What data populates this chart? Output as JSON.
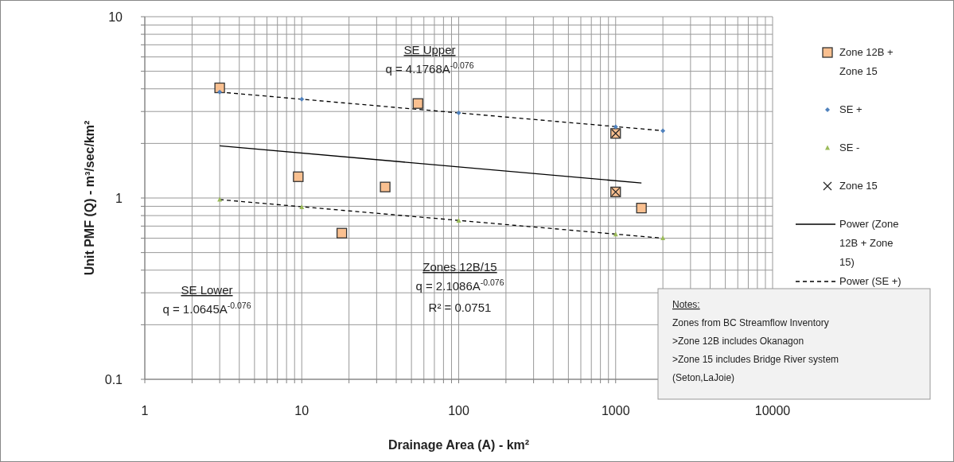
{
  "chart_data": {
    "type": "scatter",
    "xlabel": "Drainage Area (A) - km²",
    "ylabel": "Unit PMF (Q) - m³/sec/km²",
    "log": "xy",
    "grid": true,
    "legend": "right",
    "xlim": [
      1,
      10000
    ],
    "ylim": [
      0.1,
      10
    ],
    "xticks": [
      1,
      {
        "value": 2,
        "label": null
      },
      {
        "value": 3,
        "label": null
      },
      {
        "value": 4,
        "label": null
      },
      {
        "value": 5,
        "label": null
      },
      {
        "value": 6,
        "label": null
      },
      {
        "value": 7,
        "label": null
      },
      {
        "value": 8,
        "label": null
      },
      {
        "value": 9,
        "label": null
      },
      10,
      {
        "value": 20,
        "label": null
      },
      {
        "value": 30,
        "label": null
      },
      {
        "value": 40,
        "label": null
      },
      {
        "value": 50,
        "label": null
      },
      {
        "value": 60,
        "label": null
      },
      {
        "value": 70,
        "label": null
      },
      {
        "value": 80,
        "label": null
      },
      {
        "value": 90,
        "label": null
      },
      100,
      {
        "value": 200,
        "label": null
      },
      {
        "value": 300,
        "label": null
      },
      {
        "value": 400,
        "label": null
      },
      {
        "value": 500,
        "label": null
      },
      {
        "value": 600,
        "label": null
      },
      {
        "value": 700,
        "label": null
      },
      {
        "value": 800,
        "label": null
      },
      {
        "value": 900,
        "label": null
      },
      1000,
      {
        "value": 2000,
        "label": null
      },
      {
        "value": 3000,
        "label": null
      },
      {
        "value": 4000,
        "label": null
      },
      {
        "value": 5000,
        "label": null
      },
      {
        "value": 6000,
        "label": null
      },
      {
        "value": 7000,
        "label": null
      },
      {
        "value": 8000,
        "label": null
      },
      {
        "value": 9000,
        "label": null
      },
      10000
    ],
    "yticks": [
      0.1,
      {
        "value": 0.2,
        "label": null
      },
      {
        "value": 0.3,
        "label": null
      },
      {
        "value": 0.4,
        "label": null
      },
      {
        "value": 0.5,
        "label": null
      },
      {
        "value": 0.6,
        "label": null
      },
      {
        "value": 0.7,
        "label": null
      },
      {
        "value": 0.8,
        "label": null
      },
      {
        "value": 0.9,
        "label": null
      },
      1,
      {
        "value": 2,
        "label": null
      },
      {
        "value": 3,
        "label": null
      },
      {
        "value": 4,
        "label": null
      },
      {
        "value": 5,
        "label": null
      },
      {
        "value": 6,
        "label": null
      },
      {
        "value": 7,
        "label": null
      },
      {
        "value": 8,
        "label": null
      },
      {
        "value": 9,
        "label": null
      },
      10
    ],
    "series": [
      {
        "name": "Zone 12B + Zone 15",
        "marker": "square",
        "color": "#fac090",
        "x": [
          3,
          9.5,
          18,
          34,
          55,
          1000,
          1000,
          1460
        ],
        "values": [
          4.05,
          1.31,
          0.64,
          1.15,
          3.32,
          2.27,
          1.08,
          0.88
        ]
      },
      {
        "name": "SE +",
        "marker": "diamond",
        "color": "#4f81bd",
        "x": [
          3,
          10,
          100,
          1000,
          2000
        ],
        "values": [
          3.84,
          3.51,
          2.95,
          2.47,
          2.35
        ]
      },
      {
        "name": "SE -",
        "marker": "triangle",
        "color": "#9bbb59",
        "x": [
          3,
          10,
          100,
          1000,
          2000
        ],
        "values": [
          0.98,
          0.89,
          0.75,
          0.63,
          0.6
        ]
      },
      {
        "name": "Zone 15",
        "marker": "cross",
        "color": "#262626",
        "x": [
          1000,
          1000
        ],
        "values": [
          2.27,
          1.08
        ]
      },
      {
        "name": "Power (Zone 12B + Zone 15)",
        "type": "line",
        "line_style": "solid",
        "color": "#000000",
        "x": [
          3,
          1460
        ],
        "values": [
          1.94,
          1.21
        ]
      },
      {
        "name": "Power (SE +)",
        "type": "line",
        "line_style": "dashed",
        "color": "#000000",
        "x": [
          3,
          2000
        ],
        "values": [
          3.84,
          2.35
        ]
      },
      {
        "type": "line",
        "line_style": "dashed",
        "color": "#000000",
        "x": [
          3,
          2000
        ],
        "values": [
          0.98,
          0.6
        ]
      }
    ],
    "annotations": [
      "SE Upper",
      "q = 4.1768A$^{-0.076}$",
      "SE Lower",
      "q = 1.0645A$^{-0.076}$",
      "Zones 12B/15",
      "q = 2.1086A$^{-0.076}$",
      "R² = 0.0751",
      "Notes:\nZones from BC Streamflow Inventory\n>Zone 12B includes Okanagon\n>Zone 15 includes Bridge River system\n (Seton,LaJoie)"
    ]
  }
}
